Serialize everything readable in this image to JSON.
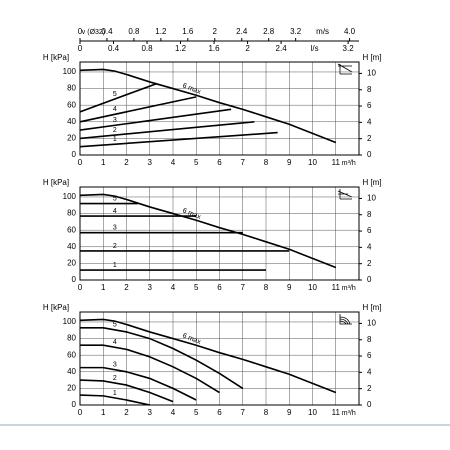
{
  "top_axes": {
    "v_label": "v (Ø32)",
    "v_unit": "m/s",
    "v_xlim": [
      0,
      4.14
    ],
    "v_ticks": [
      0,
      0.4,
      0.8,
      1.2,
      1.6,
      2,
      2.4,
      2.8,
      3.2,
      {
        "value": 4,
        "label": "4.0"
      }
    ],
    "q_unit": "l/s",
    "q_xlim": [
      0,
      3.33
    ],
    "q_ticks": [
      0,
      0.4,
      0.8,
      1.2,
      1.6,
      2,
      2.4,
      3.2
    ]
  },
  "chart_data": [
    {
      "type": "line",
      "ylabel": "H [kPa]",
      "y2label": "H [m]",
      "xlabel": "m³/h",
      "xlim": [
        0,
        12
      ],
      "xticks": [
        0,
        1,
        2,
        3,
        4,
        5,
        6,
        7,
        8,
        9,
        10,
        11
      ],
      "ylim": [
        0,
        112
      ],
      "yticks": [
        0,
        20,
        40,
        60,
        80,
        100
      ],
      "y2lim": [
        0,
        11.4
      ],
      "y2ticks": [
        0,
        2,
        4,
        6,
        8,
        10
      ],
      "grid": true,
      "series": [
        {
          "name": "6 max",
          "color": "#000000",
          "x": [
            0,
            1,
            1.5,
            2,
            3,
            4,
            5,
            6,
            7,
            8,
            9,
            10,
            11
          ],
          "values": [
            102,
            103,
            101,
            97,
            88,
            80,
            72,
            63,
            55,
            46,
            37,
            26,
            15
          ]
        },
        {
          "name": "5",
          "color": "#000000",
          "x": [
            0,
            3.3
          ],
          "values": [
            52,
            86
          ]
        },
        {
          "name": "4",
          "color": "#000000",
          "x": [
            0,
            5
          ],
          "values": [
            40,
            70
          ]
        },
        {
          "name": "3",
          "color": "#000000",
          "x": [
            0,
            6.5
          ],
          "values": [
            30,
            55
          ]
        },
        {
          "name": "2",
          "color": "#000000",
          "x": [
            0,
            7.5
          ],
          "values": [
            20,
            40
          ]
        },
        {
          "name": "1",
          "color": "#000000",
          "x": [
            0,
            8.5
          ],
          "values": [
            10,
            27
          ]
        }
      ]
    },
    {
      "type": "line",
      "ylabel": "H [kPa]",
      "y2label": "H [m]",
      "xlabel": "m³/h",
      "xlim": [
        0,
        12
      ],
      "xticks": [
        0,
        1,
        2,
        3,
        4,
        5,
        6,
        7,
        8,
        9,
        10,
        11
      ],
      "ylim": [
        0,
        112
      ],
      "yticks": [
        0,
        20,
        40,
        60,
        80,
        100
      ],
      "y2lim": [
        0,
        11.4
      ],
      "y2ticks": [
        0,
        2,
        4,
        6,
        8,
        10
      ],
      "grid": true,
      "series": [
        {
          "name": "6 max",
          "color": "#000000",
          "x": [
            0,
            1,
            1.5,
            2,
            3,
            4,
            5,
            6,
            7,
            8,
            9,
            10,
            11
          ],
          "values": [
            102,
            103,
            101,
            97,
            88,
            80,
            72,
            63,
            55,
            46,
            37,
            26,
            15
          ]
        },
        {
          "name": "5",
          "color": "#000000",
          "x": [
            0,
            2.5
          ],
          "values": [
            92,
            92
          ]
        },
        {
          "name": "4",
          "color": "#000000",
          "x": [
            0,
            5
          ],
          "values": [
            77,
            77
          ]
        },
        {
          "name": "3",
          "color": "#000000",
          "x": [
            0,
            7
          ],
          "values": [
            57,
            57
          ]
        },
        {
          "name": "2",
          "color": "#000000",
          "x": [
            0,
            9
          ],
          "values": [
            35,
            35
          ]
        },
        {
          "name": "1",
          "color": "#000000",
          "x": [
            0,
            8
          ],
          "values": [
            12,
            12
          ]
        }
      ]
    },
    {
      "type": "line",
      "ylabel": "H [kPa]",
      "y2label": "H [m]",
      "xlabel": "m³/h",
      "xlim": [
        0,
        12
      ],
      "xticks": [
        0,
        1,
        2,
        3,
        4,
        5,
        6,
        7,
        8,
        9,
        10,
        11
      ],
      "ylim": [
        0,
        112
      ],
      "yticks": [
        0,
        20,
        40,
        60,
        80,
        100
      ],
      "y2lim": [
        0,
        11.4
      ],
      "y2ticks": [
        0,
        2,
        4,
        6,
        8,
        10
      ],
      "grid": true,
      "series": [
        {
          "name": "6 max",
          "color": "#000000",
          "x": [
            0,
            1,
            1.5,
            2,
            3,
            4,
            5,
            6,
            7,
            8,
            9,
            10,
            11
          ],
          "values": [
            102,
            103,
            101,
            97,
            88,
            80,
            72,
            63,
            55,
            46,
            37,
            26,
            15
          ]
        },
        {
          "name": "5",
          "color": "#000000",
          "x": [
            0,
            1,
            2,
            3,
            4,
            5,
            6,
            7
          ],
          "values": [
            93,
            93,
            88,
            80,
            68,
            54,
            38,
            20
          ]
        },
        {
          "name": "4",
          "color": "#000000",
          "x": [
            0,
            1,
            2,
            3,
            4,
            5,
            6
          ],
          "values": [
            72,
            72,
            67,
            58,
            46,
            32,
            15
          ]
        },
        {
          "name": "3",
          "color": "#000000",
          "x": [
            0,
            1,
            2,
            3,
            4,
            5
          ],
          "values": [
            45,
            45,
            40,
            32,
            20,
            6
          ]
        },
        {
          "name": "2",
          "color": "#000000",
          "x": [
            0,
            1,
            2,
            3,
            4
          ],
          "values": [
            30,
            29,
            24,
            15,
            4
          ]
        },
        {
          "name": "1",
          "color": "#000000",
          "x": [
            0,
            1,
            2,
            3
          ],
          "values": [
            12,
            11,
            6,
            0
          ]
        }
      ]
    }
  ]
}
